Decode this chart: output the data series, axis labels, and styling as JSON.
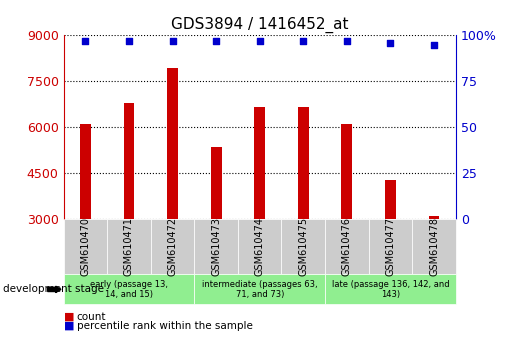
{
  "title": "GDS3894 / 1416452_at",
  "samples": [
    "GSM610470",
    "GSM610471",
    "GSM610472",
    "GSM610473",
    "GSM610474",
    "GSM610475",
    "GSM610476",
    "GSM610477",
    "GSM610478"
  ],
  "counts": [
    6100,
    6800,
    7950,
    5350,
    6650,
    6650,
    6100,
    4300,
    3100
  ],
  "percentile_ranks": [
    97,
    97,
    97,
    97,
    97,
    97,
    97,
    96,
    95
  ],
  "y_min": 3000,
  "y_max": 9000,
  "y_ticks": [
    3000,
    4500,
    6000,
    7500,
    9000
  ],
  "right_y_ticks": [
    0,
    25,
    50,
    75,
    100
  ],
  "right_y_tick_labels": [
    "0",
    "25",
    "50",
    "75",
    "100%"
  ],
  "bar_color": "#CC0000",
  "dot_color": "#0000CC",
  "bar_width": 0.25,
  "groups": [
    {
      "label": "early (passage 13,\n14, and 15)",
      "start": 0,
      "end": 3,
      "color": "#90EE90"
    },
    {
      "label": "intermediate (passages 63,\n71, and 73)",
      "start": 3,
      "end": 6,
      "color": "#90EE90"
    },
    {
      "label": "late (passage 136, 142, and\n143)",
      "start": 6,
      "end": 9,
      "color": "#90EE90"
    }
  ],
  "stage_label": "development stage",
  "legend_count_label": "count",
  "legend_percentile_label": "percentile rank within the sample",
  "tick_color_left": "#CC0000",
  "tick_color_right": "#0000CC",
  "grid_color": "#000000",
  "xticklabel_bg": "#CCCCCC",
  "group_divider_color": "#FFFFFF"
}
